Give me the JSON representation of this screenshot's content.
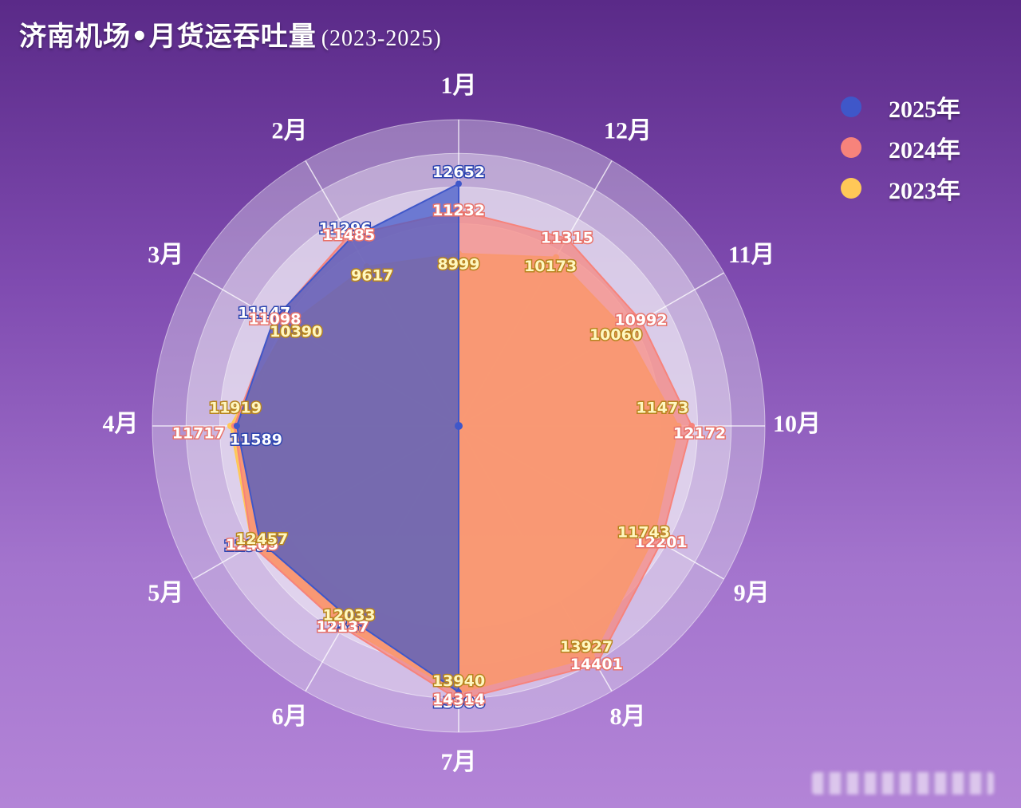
{
  "title": "济南机场•月货运吞吐量",
  "subtitle": "(2023-2025)",
  "legend": [
    {
      "label": "2025年",
      "color": "#3f57c9"
    },
    {
      "label": "2024年",
      "color": "#f7837b"
    },
    {
      "label": "2023年",
      "color": "#ffc857"
    }
  ],
  "chart_data": {
    "type": "radar",
    "categories": [
      "1月",
      "2月",
      "3月",
      "4月",
      "5月",
      "6月",
      "7月",
      "8月",
      "9月",
      "10月",
      "11月",
      "12月"
    ],
    "series": [
      {
        "name": "2025年",
        "color": "#3f57c9",
        "values": [
          12652,
          11296,
          11147,
          11589,
          11997,
          11547,
          13906,
          null,
          null,
          null,
          null,
          null
        ]
      },
      {
        "name": "2024年",
        "color": "#f7837b",
        "values": [
          11232,
          11485,
          11098,
          11717,
          12465,
          12137,
          14314,
          14401,
          12201,
          12172,
          10992,
          11315
        ]
      },
      {
        "name": "2023年",
        "color": "#ffc857",
        "values": [
          8999,
          9617,
          10390,
          11919,
          12457,
          12033,
          13940,
          13927,
          11743,
          11473,
          10060,
          10173
        ]
      }
    ],
    "rlim": [
      0,
      16000
    ],
    "grid": true,
    "legend_position": "top-right"
  }
}
